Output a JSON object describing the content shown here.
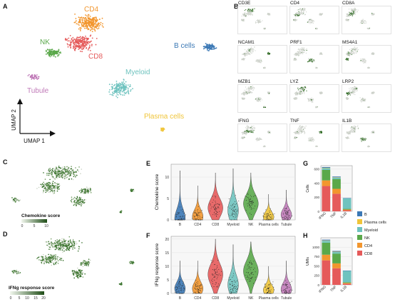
{
  "panels": {
    "A": "A",
    "B": "B",
    "C": "C",
    "D": "D",
    "E": "E",
    "F": "F",
    "G": "G",
    "H": "H"
  },
  "umap": {
    "clusters": [
      {
        "label": "CD4",
        "color": "#f2962e"
      },
      {
        "label": "NK",
        "color": "#5aa84a"
      },
      {
        "label": "CD8",
        "color": "#e55a5a"
      },
      {
        "label": "B cells",
        "color": "#3b78b5"
      },
      {
        "label": "Myeloid",
        "color": "#6fc3bf"
      },
      {
        "label": "Tubule",
        "color": "#c07ab8"
      },
      {
        "label": "Plasma cells",
        "color": "#f0c53a"
      }
    ],
    "axis_y": "UMAP 2",
    "axis_x": "UMAP 1"
  },
  "feature_plots": [
    "CD3E",
    "CD4",
    "CD8A",
    "NCAM1",
    "PRF1",
    "MS4A1",
    "MZB1",
    "LYZ",
    "LRP2",
    "IFNG",
    "TNF",
    "IL1B"
  ],
  "panel_c": {
    "legend_title": "Chemokine score",
    "ticks": [
      "0",
      "5",
      "10"
    ]
  },
  "panel_d": {
    "legend_title": "IFNg response score",
    "ticks": [
      "0",
      "5",
      "10",
      "15",
      "20"
    ]
  },
  "violin_categories": [
    "B",
    "CD4",
    "CD8",
    "Myeloid",
    "NK",
    "Plasma cells",
    "Tubule"
  ],
  "violin_colors": [
    "#3b78b5",
    "#f2962e",
    "#e55a5a",
    "#6fc3bf",
    "#5aa84a",
    "#f0c53a",
    "#c07ab8"
  ],
  "chart_data": [
    {
      "type": "violin",
      "panel": "E",
      "ylabel": "Chemokine score",
      "ylim": [
        0,
        13
      ],
      "yticks": [
        0,
        5,
        10
      ],
      "categories": [
        "B",
        "CD4",
        "CD8",
        "Myeloid",
        "NK",
        "Plasma cells",
        "Tubule"
      ],
      "medians": [
        0.2,
        0.8,
        2.8,
        2.2,
        3.8,
        0.7,
        1.2
      ],
      "maxima": [
        11.5,
        8,
        11,
        12,
        11,
        6,
        7
      ]
    },
    {
      "type": "violin",
      "panel": "F",
      "ylabel": "IFNg response score",
      "ylim": [
        0,
        21
      ],
      "yticks": [
        0,
        5,
        10,
        15,
        20
      ],
      "categories": [
        "B",
        "CD4",
        "CD8",
        "Myeloid",
        "NK",
        "Plasma cells",
        "Tubule"
      ],
      "medians": [
        1.8,
        1.8,
        7,
        3.2,
        8.2,
        1.2,
        1.5
      ],
      "maxima": [
        12,
        12,
        20,
        18,
        19,
        10,
        12
      ]
    },
    {
      "type": "bar",
      "stacked": true,
      "panel": "G",
      "ylabel": "Cells",
      "categories": [
        "IFNG",
        "TNF",
        "IL1B"
      ],
      "yticks": [
        0,
        200,
        400,
        600
      ],
      "ylim": [
        0,
        650
      ],
      "series": [
        {
          "name": "B",
          "color": "#3b78b5",
          "values": [
            10,
            10,
            5
          ]
        },
        {
          "name": "Plasma cells",
          "color": "#f0c53a",
          "values": [
            5,
            5,
            0
          ]
        },
        {
          "name": "Myeloid",
          "color": "#6fc3bf",
          "values": [
            25,
            20,
            150
          ]
        },
        {
          "name": "NK",
          "color": "#5aa84a",
          "values": [
            150,
            140,
            10
          ]
        },
        {
          "name": "CD4",
          "color": "#f2962e",
          "values": [
            80,
            70,
            10
          ]
        },
        {
          "name": "CD8",
          "color": "#e55a5a",
          "values": [
            360,
            250,
            15
          ]
        }
      ]
    },
    {
      "type": "bar",
      "stacked": true,
      "panel": "H",
      "ylabel": "UMIs",
      "categories": [
        "IFNG",
        "TNF",
        "IL1B"
      ],
      "yticks": [
        0,
        250,
        500,
        750,
        1000
      ],
      "ylim": [
        0,
        1250
      ],
      "series": [
        {
          "name": "B",
          "color": "#3b78b5",
          "values": [
            20,
            20,
            10
          ]
        },
        {
          "name": "Plasma cells",
          "color": "#f0c53a",
          "values": [
            10,
            10,
            0
          ]
        },
        {
          "name": "Myeloid",
          "color": "#6fc3bf",
          "values": [
            50,
            40,
            300
          ]
        },
        {
          "name": "NK",
          "color": "#5aa84a",
          "values": [
            320,
            260,
            20
          ]
        },
        {
          "name": "CD4",
          "color": "#f2962e",
          "values": [
            150,
            130,
            20
          ]
        },
        {
          "name": "CD8",
          "color": "#e55a5a",
          "values": [
            650,
            440,
            30
          ]
        }
      ]
    }
  ],
  "legend": [
    {
      "name": "B",
      "color": "#3b78b5"
    },
    {
      "name": "Plasma cells",
      "color": "#f0c53a"
    },
    {
      "name": "Myeloid",
      "color": "#6fc3bf"
    },
    {
      "name": "NK",
      "color": "#5aa84a"
    },
    {
      "name": "CD4",
      "color": "#f2962e"
    },
    {
      "name": "CD8",
      "color": "#e55a5a"
    }
  ]
}
